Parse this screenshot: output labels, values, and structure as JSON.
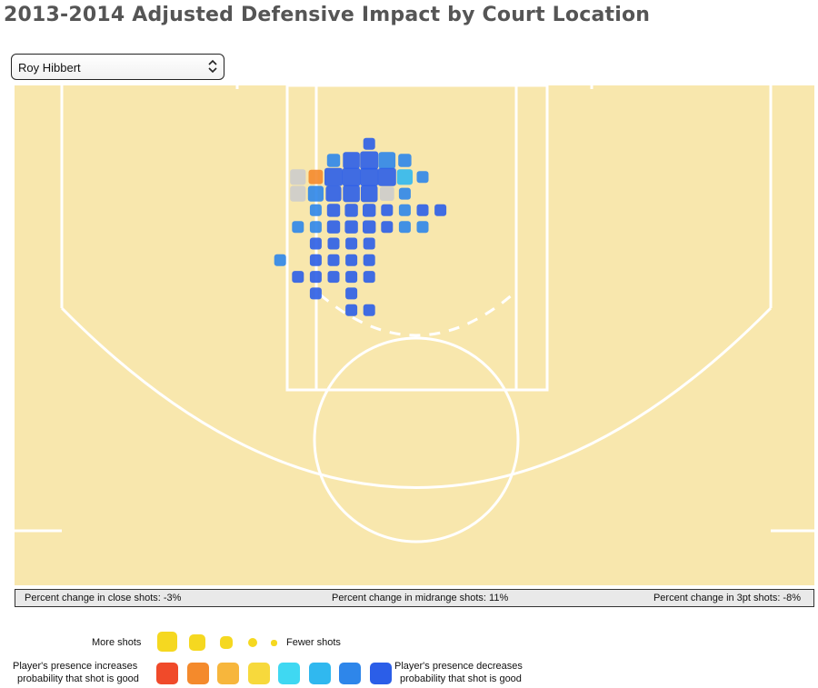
{
  "title": "2013-2014 Adjusted Defensive Impact by Court Location",
  "selector": {
    "value": "Roy Hibbert"
  },
  "stats": {
    "close": "Percent change in close shots: -3%",
    "midrange": "Percent change in midrange shots: 11%",
    "three": "Percent change in 3pt shots: -8%"
  },
  "legend": {
    "more_shots": "More shots",
    "fewer_shots": "Fewer shots",
    "increase_label_1": "Player's presence increases",
    "increase_label_2": "probability that shot is good",
    "decrease_label_1": "Player's presence decreases",
    "decrease_label_2": "probability that shot is good",
    "size_color": "#f5d820",
    "scale_colors": [
      "#f04a2a",
      "#f48a2c",
      "#f7b63c",
      "#f7d93c",
      "#3fd8f2",
      "#30b8ef",
      "#2e86ea",
      "#2b5ee8"
    ]
  },
  "chart_data": {
    "type": "heatmap",
    "description_encoding": "square size = shot frequency; color = effect of player presence on shot probability (orange/red increases, blue decreases, gray neutral)",
    "court_color": "#f8e7ad",
    "cells": [
      {
        "row": 0,
        "col": 19,
        "size": 0.5,
        "effect": -0.9
      },
      {
        "row": 1,
        "col": 17,
        "size": 0.6,
        "effect": -0.8
      },
      {
        "row": 1,
        "col": 18,
        "size": 0.9,
        "effect": -0.9
      },
      {
        "row": 1,
        "col": 19,
        "size": 1.0,
        "effect": -0.9
      },
      {
        "row": 1,
        "col": 20,
        "size": 0.9,
        "effect": -0.8
      },
      {
        "row": 1,
        "col": 21,
        "size": 0.6,
        "effect": -0.7
      },
      {
        "row": 2,
        "col": 16,
        "size": 0.7,
        "effect": 0.6
      },
      {
        "row": 2,
        "col": 17,
        "size": 1.0,
        "effect": -0.9
      },
      {
        "row": 2,
        "col": 18,
        "size": 1.0,
        "effect": -0.9
      },
      {
        "row": 2,
        "col": 19,
        "size": 1.0,
        "effect": -0.9
      },
      {
        "row": 2,
        "col": 20,
        "size": 1.0,
        "effect": -0.9
      },
      {
        "row": 2,
        "col": 21,
        "size": 0.8,
        "effect": -0.5
      },
      {
        "row": 2,
        "col": 22,
        "size": 0.5,
        "effect": -0.8
      },
      {
        "row": 2,
        "col": 15,
        "size": 0.8,
        "effect": 0
      },
      {
        "row": 3,
        "col": 15,
        "size": 0.8,
        "effect": 0
      },
      {
        "row": 3,
        "col": 16,
        "size": 0.8,
        "effect": -0.8
      },
      {
        "row": 3,
        "col": 17,
        "size": 0.8,
        "effect": -0.9
      },
      {
        "row": 3,
        "col": 18,
        "size": 0.9,
        "effect": -0.9
      },
      {
        "row": 3,
        "col": 19,
        "size": 0.9,
        "effect": -0.9
      },
      {
        "row": 3,
        "col": 20,
        "size": 0.7,
        "effect": 0
      },
      {
        "row": 3,
        "col": 21,
        "size": 0.5,
        "effect": -0.8
      },
      {
        "row": 4,
        "col": 16,
        "size": 0.5,
        "effect": -0.8
      },
      {
        "row": 4,
        "col": 17,
        "size": 0.6,
        "effect": -0.9
      },
      {
        "row": 4,
        "col": 18,
        "size": 0.6,
        "effect": -0.9
      },
      {
        "row": 4,
        "col": 19,
        "size": 0.6,
        "effect": -0.9
      },
      {
        "row": 4,
        "col": 20,
        "size": 0.5,
        "effect": -0.9
      },
      {
        "row": 4,
        "col": 21,
        "size": 0.5,
        "effect": -0.8
      },
      {
        "row": 4,
        "col": 22,
        "size": 0.5,
        "effect": -0.9
      },
      {
        "row": 4,
        "col": 23,
        "size": 0.5,
        "effect": -0.9
      },
      {
        "row": 5,
        "col": 15,
        "size": 0.5,
        "effect": -0.8
      },
      {
        "row": 5,
        "col": 16,
        "size": 0.5,
        "effect": -0.7
      },
      {
        "row": 5,
        "col": 17,
        "size": 0.6,
        "effect": -0.9
      },
      {
        "row": 5,
        "col": 18,
        "size": 0.6,
        "effect": -0.9
      },
      {
        "row": 5,
        "col": 19,
        "size": 0.6,
        "effect": -0.9
      },
      {
        "row": 5,
        "col": 20,
        "size": 0.5,
        "effect": -0.9
      },
      {
        "row": 5,
        "col": 21,
        "size": 0.5,
        "effect": -0.8
      },
      {
        "row": 5,
        "col": 22,
        "size": 0.5,
        "effect": -0.8
      },
      {
        "row": 6,
        "col": 16,
        "size": 0.5,
        "effect": -0.9
      },
      {
        "row": 6,
        "col": 17,
        "size": 0.5,
        "effect": -0.9
      },
      {
        "row": 6,
        "col": 18,
        "size": 0.5,
        "effect": -0.9
      },
      {
        "row": 6,
        "col": 19,
        "size": 0.5,
        "effect": -0.9
      },
      {
        "row": 7,
        "col": 14,
        "size": 0.5,
        "effect": -0.8
      },
      {
        "row": 7,
        "col": 16,
        "size": 0.5,
        "effect": -0.9
      },
      {
        "row": 7,
        "col": 17,
        "size": 0.5,
        "effect": -0.9
      },
      {
        "row": 7,
        "col": 18,
        "size": 0.5,
        "effect": -0.9
      },
      {
        "row": 7,
        "col": 19,
        "size": 0.5,
        "effect": -0.9
      },
      {
        "row": 8,
        "col": 15,
        "size": 0.5,
        "effect": -0.9
      },
      {
        "row": 8,
        "col": 16,
        "size": 0.5,
        "effect": -0.9
      },
      {
        "row": 8,
        "col": 17,
        "size": 0.5,
        "effect": -0.9
      },
      {
        "row": 8,
        "col": 18,
        "size": 0.5,
        "effect": -0.9
      },
      {
        "row": 8,
        "col": 19,
        "size": 0.5,
        "effect": -0.9
      },
      {
        "row": 9,
        "col": 16,
        "size": 0.5,
        "effect": -0.9
      },
      {
        "row": 9,
        "col": 18,
        "size": 0.5,
        "effect": -0.9
      },
      {
        "row": 10,
        "col": 18,
        "size": 0.5,
        "effect": -0.9
      },
      {
        "row": 10,
        "col": 19,
        "size": 0.5,
        "effect": -0.9
      }
    ]
  }
}
